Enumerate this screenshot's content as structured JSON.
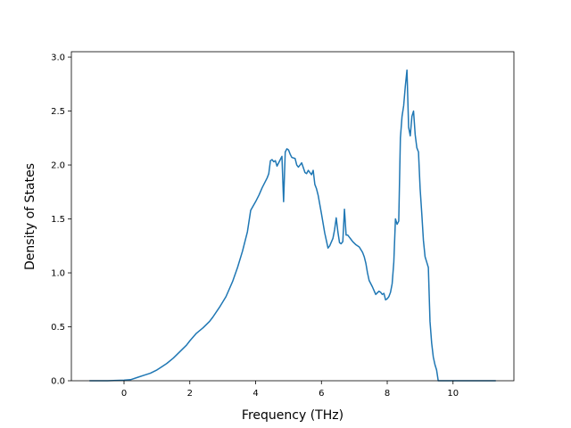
{
  "chart_data": {
    "type": "line",
    "title": "",
    "xlabel": "Frequency (THz)",
    "ylabel": "Density of States",
    "xlim": [
      -1.6,
      11.85
    ],
    "ylim": [
      0.0,
      3.05
    ],
    "xticks": [
      0,
      2,
      4,
      6,
      8,
      10
    ],
    "xtick_labels": [
      "0",
      "2",
      "4",
      "6",
      "8",
      "10"
    ],
    "yticks": [
      0.0,
      0.5,
      1.0,
      1.5,
      2.0,
      2.5,
      3.0
    ],
    "ytick_labels": [
      "0.0",
      "0.5",
      "1.0",
      "1.5",
      "2.0",
      "2.5",
      "3.0"
    ],
    "grid": false,
    "legend": "none",
    "series": [
      {
        "color": "#1f77b4",
        "x": [
          -1.05,
          -0.5,
          0.0,
          0.2,
          0.4,
          0.6,
          0.8,
          1.0,
          1.1,
          1.3,
          1.5,
          1.7,
          1.9,
          2.0,
          2.2,
          2.4,
          2.6,
          2.7,
          2.9,
          3.1,
          3.3,
          3.45,
          3.6,
          3.75,
          3.85,
          4.0,
          4.1,
          4.2,
          4.3,
          4.35,
          4.4,
          4.45,
          4.5,
          4.55,
          4.6,
          4.65,
          4.7,
          4.75,
          4.8,
          4.85,
          4.9,
          4.95,
          5.0,
          5.05,
          5.1,
          5.2,
          5.25,
          5.3,
          5.35,
          5.4,
          5.5,
          5.55,
          5.6,
          5.7,
          5.75,
          5.8,
          5.85,
          5.9,
          6.0,
          6.1,
          6.15,
          6.2,
          6.25,
          6.35,
          6.4,
          6.45,
          6.5,
          6.55,
          6.6,
          6.65,
          6.7,
          6.75,
          6.8,
          6.85,
          6.9,
          6.95,
          7.05,
          7.15,
          7.25,
          7.3,
          7.35,
          7.4,
          7.45,
          7.5,
          7.55,
          7.65,
          7.75,
          7.8,
          7.85,
          7.9,
          7.95,
          8.0,
          8.05,
          8.1,
          8.15,
          8.2,
          8.25,
          8.3,
          8.35,
          8.4,
          8.45,
          8.5,
          8.55,
          8.6,
          8.65,
          8.7,
          8.75,
          8.8,
          8.85,
          8.9,
          8.95,
          9.0,
          9.05,
          9.1,
          9.15,
          9.2,
          9.25,
          9.3,
          9.35,
          9.4,
          9.45,
          9.5,
          9.55,
          9.6,
          9.7,
          9.8,
          9.9,
          10.0,
          10.1,
          10.2,
          10.3,
          10.4,
          11.3
        ],
        "y": [
          0.0,
          0.0,
          0.005,
          0.01,
          0.03,
          0.05,
          0.07,
          0.1,
          0.12,
          0.16,
          0.21,
          0.27,
          0.33,
          0.37,
          0.44,
          0.49,
          0.55,
          0.59,
          0.68,
          0.78,
          0.92,
          1.05,
          1.2,
          1.38,
          1.58,
          1.66,
          1.72,
          1.79,
          1.85,
          1.88,
          1.92,
          2.04,
          2.05,
          2.03,
          2.04,
          1.99,
          2.02,
          2.05,
          2.08,
          1.66,
          2.12,
          2.15,
          2.14,
          2.1,
          2.07,
          2.06,
          2.0,
          1.98,
          2.0,
          2.02,
          1.93,
          1.92,
          1.95,
          1.91,
          1.95,
          1.82,
          1.78,
          1.72,
          1.55,
          1.37,
          1.3,
          1.23,
          1.25,
          1.32,
          1.4,
          1.51,
          1.38,
          1.28,
          1.27,
          1.29,
          1.59,
          1.35,
          1.35,
          1.33,
          1.31,
          1.29,
          1.26,
          1.24,
          1.19,
          1.15,
          1.09,
          1.0,
          0.93,
          0.9,
          0.87,
          0.8,
          0.83,
          0.82,
          0.8,
          0.81,
          0.75,
          0.76,
          0.78,
          0.82,
          0.9,
          1.1,
          1.5,
          1.45,
          1.48,
          2.25,
          2.45,
          2.55,
          2.73,
          2.88,
          2.35,
          2.27,
          2.45,
          2.5,
          2.28,
          2.16,
          2.12,
          1.78,
          1.55,
          1.3,
          1.15,
          1.1,
          1.05,
          0.55,
          0.35,
          0.22,
          0.15,
          0.1,
          0.0,
          0.0,
          0.0,
          0.0,
          0.0,
          0.0,
          0.0,
          0.0,
          0.0,
          0.0,
          0.0
        ]
      }
    ]
  }
}
